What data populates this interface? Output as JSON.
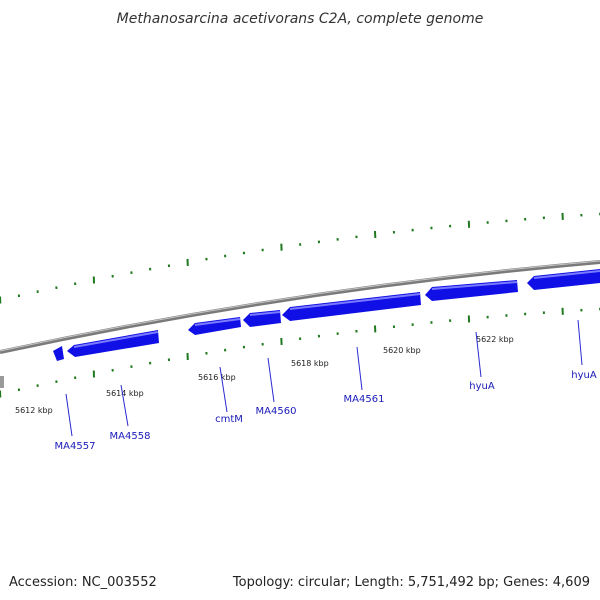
{
  "title": "Methanosarcina acetivorans C2A, complete genome",
  "footer": {
    "accession": "Accession: NC_003552",
    "summary": "Topology: circular; Length: 5,751,492 bp; Genes: 4,609"
  },
  "scale_labels": [
    "5612 kbp",
    "5614 kbp",
    "5616 kbp",
    "5618 kbp",
    "5620 kbp",
    "5622 kbp"
  ],
  "gene_labels": [
    "MA4557",
    "MA4558",
    "cmtM",
    "MA4560",
    "MA4561",
    "hyuA",
    "hyuA"
  ],
  "colors": {
    "gene": "#1010e6",
    "gene_highlight": "#7a7aff",
    "backbone": "#7a7a7a",
    "tick": "#1f7a1f",
    "label_line": "#2a2ad0"
  }
}
